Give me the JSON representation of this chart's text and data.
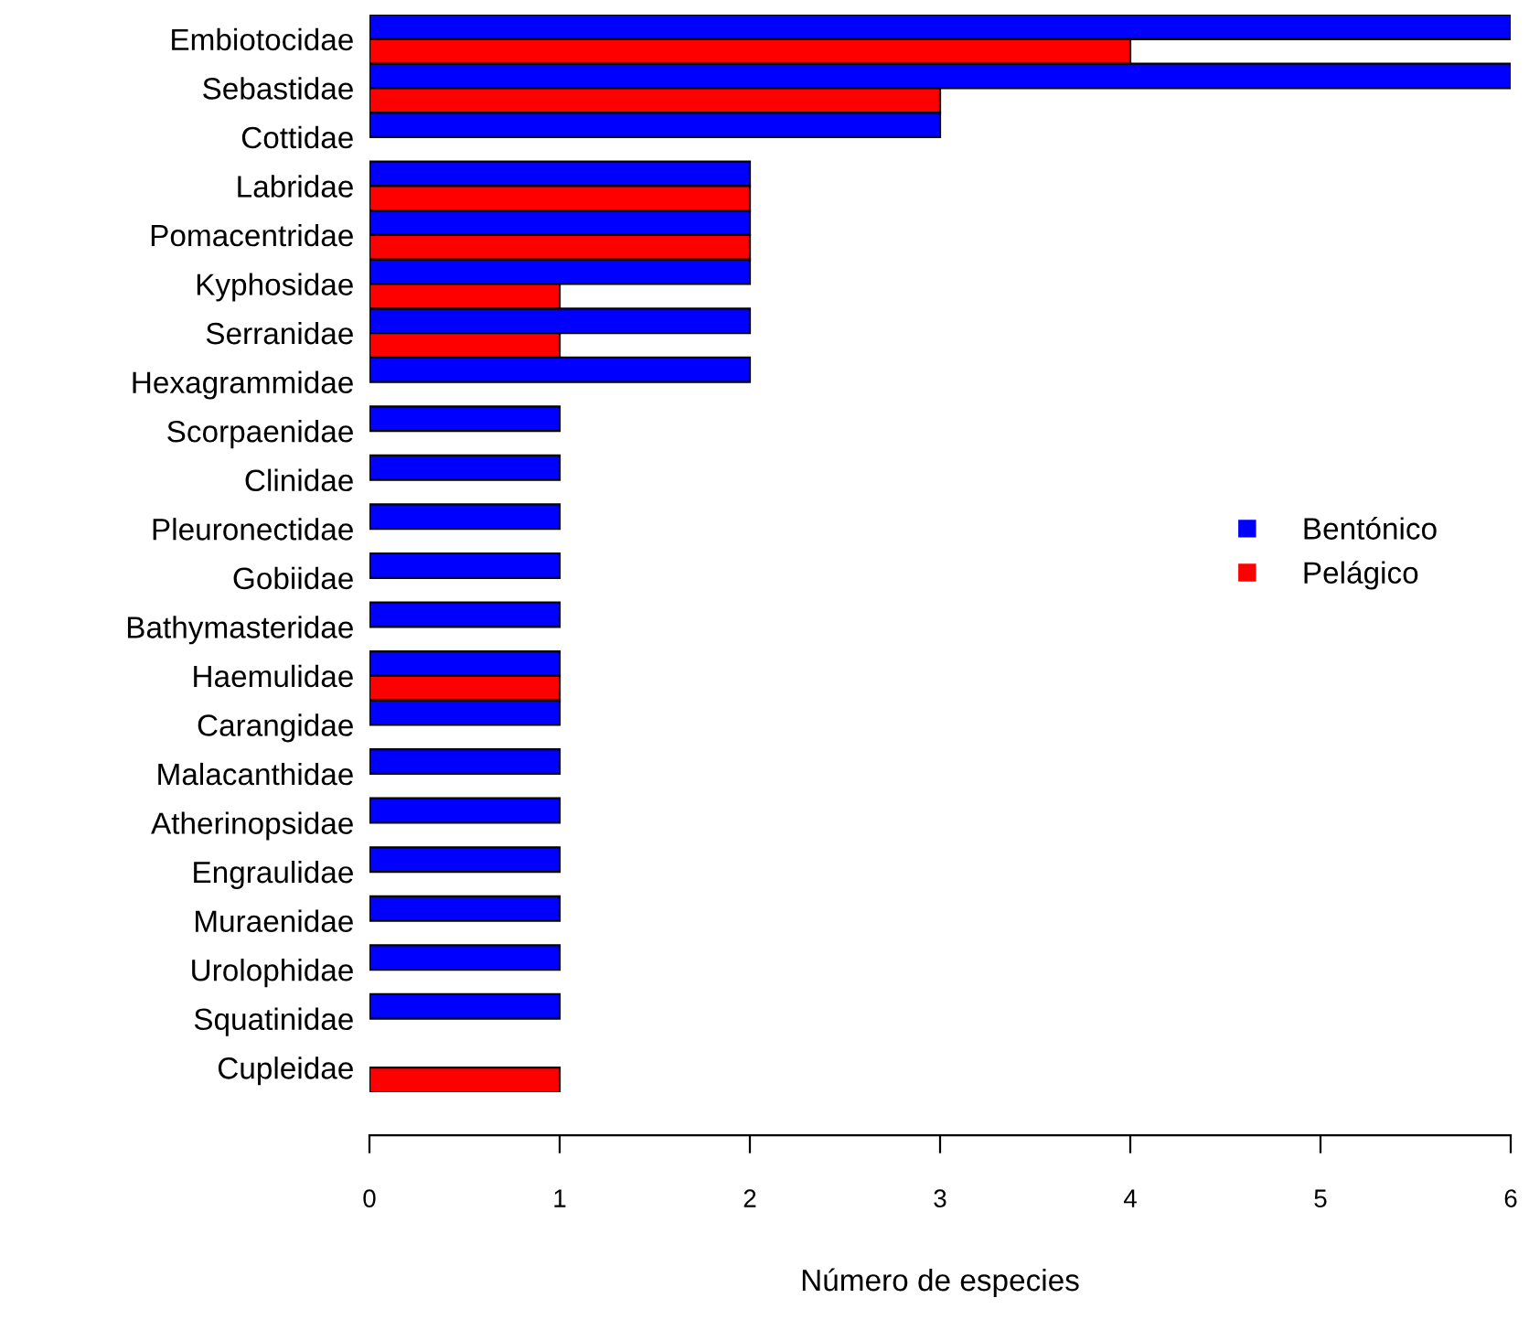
{
  "chart_data": {
    "type": "bar",
    "orientation": "horizontal",
    "xlabel": "Número de especies",
    "xlim": [
      0,
      6
    ],
    "xticks": [
      0,
      1,
      2,
      3,
      4,
      5,
      6
    ],
    "grid": false,
    "legend": "right",
    "categories": [
      "Embiotocidae",
      "Sebastidae",
      "Cottidae",
      "Labridae",
      "Pomacentridae",
      "Kyphosidae",
      "Serranidae",
      "Hexagrammidae",
      "Scorpaenidae",
      "Clinidae",
      "Pleuronectidae",
      "Gobiidae",
      "Bathymasteridae",
      "Haemulidae",
      "Carangidae",
      "Malacanthidae",
      "Atherinopsidae",
      "Engraulidae",
      "Muraenidae",
      "Urolophidae",
      "Squatinidae",
      "Cupleidae"
    ],
    "series": [
      {
        "name": "Bentónico",
        "color": "#0000ff",
        "values": [
          6,
          6,
          3,
          2,
          2,
          2,
          2,
          2,
          1,
          1,
          1,
          1,
          1,
          1,
          1,
          1,
          1,
          1,
          1,
          1,
          1,
          null
        ]
      },
      {
        "name": "Pelágico",
        "color": "#ff0000",
        "values": [
          4,
          3,
          null,
          2,
          2,
          1,
          1,
          null,
          null,
          null,
          null,
          null,
          null,
          1,
          null,
          null,
          null,
          null,
          null,
          null,
          null,
          1
        ]
      }
    ]
  }
}
